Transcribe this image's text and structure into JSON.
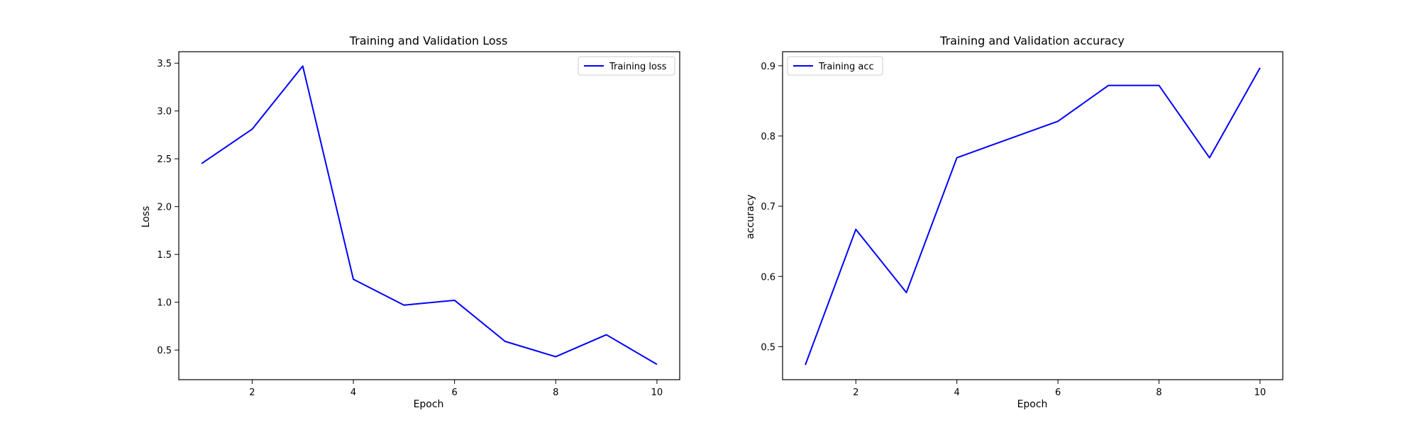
{
  "colors": {
    "series": "#0000ff",
    "axes": "#000000",
    "legend_border": "#cccccc"
  },
  "chart_data": [
    {
      "type": "line",
      "title": "Training and Validation Loss",
      "xlabel": "Epoch",
      "ylabel": "Loss",
      "xlim": [
        0.55,
        10.45
      ],
      "ylim": [
        0.19,
        3.62
      ],
      "xticks": [
        2,
        4,
        6,
        8,
        10
      ],
      "xtick_labels": [
        "2",
        "4",
        "6",
        "8",
        "10"
      ],
      "yticks": [
        0.5,
        1.0,
        1.5,
        2.0,
        2.5,
        3.0,
        3.5
      ],
      "ytick_labels": [
        "0.5",
        "1.0",
        "1.5",
        "2.0",
        "2.5",
        "3.0",
        "3.5"
      ],
      "grid": false,
      "legend": {
        "position": "top-right"
      },
      "x": [
        1,
        2,
        3,
        4,
        5,
        6,
        7,
        8,
        9,
        10
      ],
      "series": [
        {
          "name": "Training loss",
          "color": "#0000ff",
          "values": [
            2.45,
            2.81,
            3.47,
            1.24,
            0.97,
            1.02,
            0.59,
            0.43,
            0.66,
            0.35
          ]
        }
      ]
    },
    {
      "type": "line",
      "title": "Training and Validation accuracy",
      "xlabel": "Epoch",
      "ylabel": "accuracy",
      "xlim": [
        0.55,
        10.45
      ],
      "ylim": [
        0.453,
        0.92
      ],
      "xticks": [
        2,
        4,
        6,
        8,
        10
      ],
      "xtick_labels": [
        "2",
        "4",
        "6",
        "8",
        "10"
      ],
      "yticks": [
        0.5,
        0.6,
        0.7,
        0.8,
        0.9
      ],
      "ytick_labels": [
        "0.5",
        "0.6",
        "0.7",
        "0.8",
        "0.9"
      ],
      "grid": false,
      "legend": {
        "position": "top-left"
      },
      "x": [
        1,
        2,
        3,
        4,
        5,
        6,
        7,
        8,
        9,
        10
      ],
      "series": [
        {
          "name": "Training acc",
          "color": "#0000ff",
          "values": [
            0.474,
            0.667,
            0.577,
            0.769,
            0.795,
            0.821,
            0.872,
            0.872,
            0.769,
            0.897
          ]
        }
      ]
    }
  ]
}
